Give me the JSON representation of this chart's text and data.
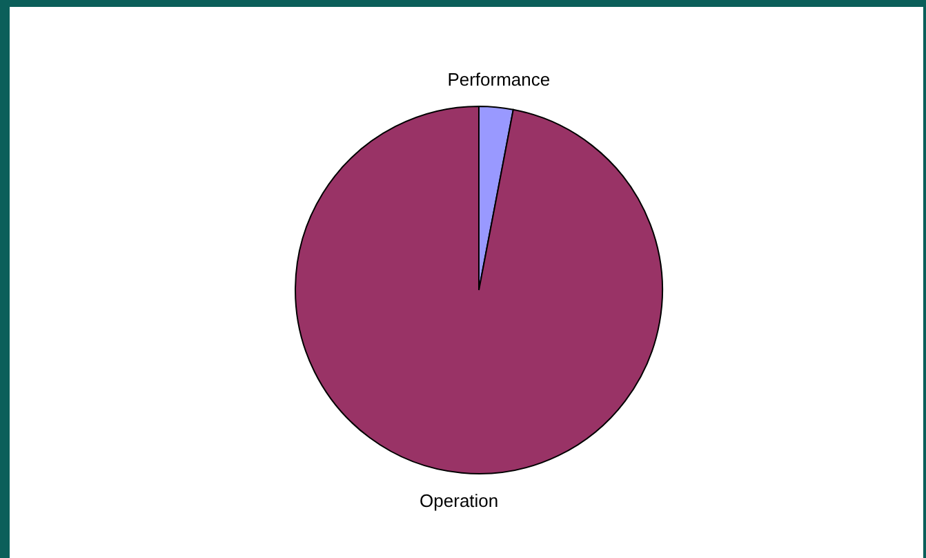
{
  "chart_data": {
    "type": "pie",
    "categories": [
      "Performance",
      "Operation"
    ],
    "values": [
      3,
      97
    ],
    "colors": [
      "#9999ff",
      "#993366"
    ]
  }
}
